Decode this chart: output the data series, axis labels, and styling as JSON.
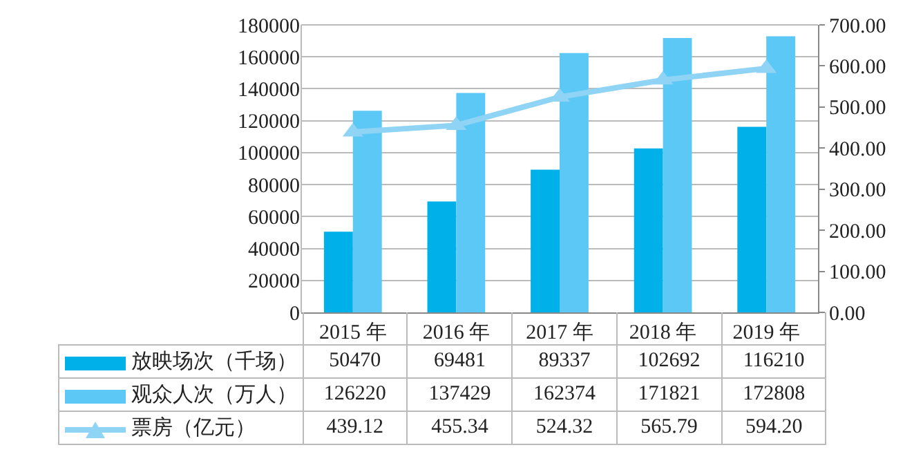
{
  "chart_data": {
    "type": "bar",
    "categories": [
      "2015 年",
      "2016 年",
      "2017 年",
      "2018 年",
      "2019 年"
    ],
    "series": [
      {
        "name": "放映场次（千场）",
        "color": "#00b0e8",
        "values": [
          50470,
          69481,
          89337,
          102692,
          116210
        ],
        "value_labels": [
          "50470",
          "69481",
          "89337",
          "102692",
          "116210"
        ]
      },
      {
        "name": "观众人次（万人）",
        "color": "#5bc8f5",
        "values": [
          126220,
          137429,
          162374,
          171821,
          172808
        ],
        "value_labels": [
          "126220",
          "137429",
          "162374",
          "171821",
          "172808"
        ]
      },
      {
        "name": "票房（亿元）",
        "type": "line",
        "axis": "y2",
        "color": "#8fd3f5",
        "marker": "triangle",
        "values": [
          439.12,
          455.34,
          524.32,
          565.79,
          594.2
        ],
        "value_labels": [
          "439.12",
          "455.34",
          "524.32",
          "565.79",
          "594.20"
        ]
      }
    ],
    "ylim": [
      0,
      180000
    ],
    "yticks": [
      0,
      20000,
      40000,
      60000,
      80000,
      100000,
      120000,
      140000,
      160000,
      180000
    ],
    "y2lim": [
      0,
      700
    ],
    "y2ticks": [
      {
        "value": 0,
        "label": "0.00"
      },
      {
        "value": 100,
        "label": "100.00"
      },
      {
        "value": 200,
        "label": "200.00"
      },
      {
        "value": 300,
        "label": "300.00"
      },
      {
        "value": 400,
        "label": "400.00"
      },
      {
        "value": 500,
        "label": "500.00"
      },
      {
        "value": 600,
        "label": "600.00"
      },
      {
        "value": 700,
        "label": "700.00"
      }
    ],
    "grid": "y",
    "legend": "bottom left"
  }
}
